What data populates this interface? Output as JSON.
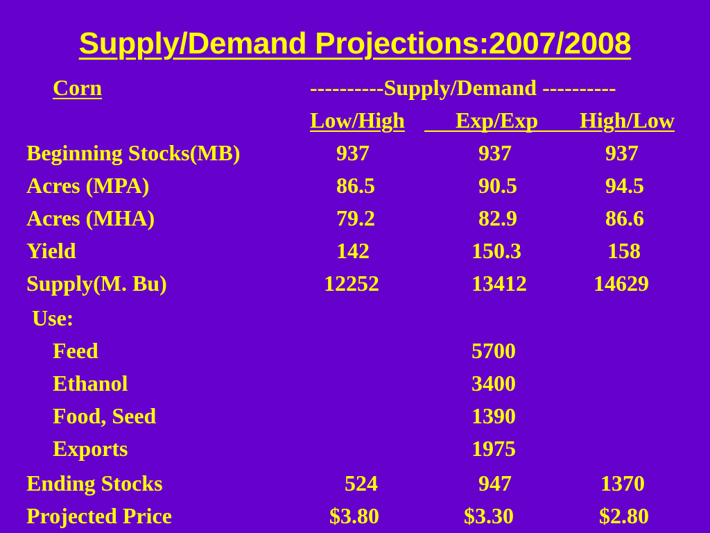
{
  "title": "Supply/Demand Projections:2007/2008",
  "crop_label": "Corn",
  "group_header": "----------Supply/Demand ----------",
  "scenarios": [
    "Low/High",
    "Exp/Exp",
    "High/Low"
  ],
  "rows": [
    {
      "label": "Beginning Stocks(MB)",
      "values": [
        "937",
        "937",
        "937"
      ]
    },
    {
      "label": "Acres (MPA)",
      "values": [
        "86.5",
        "90.5",
        "94.5"
      ]
    },
    {
      "label": "Acres (MHA)",
      "values": [
        "79.2",
        "82.9",
        "86.6"
      ]
    },
    {
      "label": "Yield",
      "values": [
        "142",
        "150.3",
        "158"
      ]
    },
    {
      "label": "Supply(M. Bu)",
      "values": [
        "12252",
        "13412",
        "14629"
      ]
    }
  ],
  "use_label": "Use:",
  "use_rows": [
    {
      "label": "Feed",
      "value": "5700"
    },
    {
      "label": "Ethanol",
      "value": "3400"
    },
    {
      "label": "Food, Seed",
      "value": "1390"
    },
    {
      "label": "Exports",
      "value": "1975"
    }
  ],
  "summary_rows": [
    {
      "label": "Ending Stocks",
      "values": [
        "524",
        "947",
        "1370"
      ]
    },
    {
      "label": "Projected Price",
      "values": [
        "$3.80",
        "$3.30",
        "$2.80"
      ]
    }
  ]
}
